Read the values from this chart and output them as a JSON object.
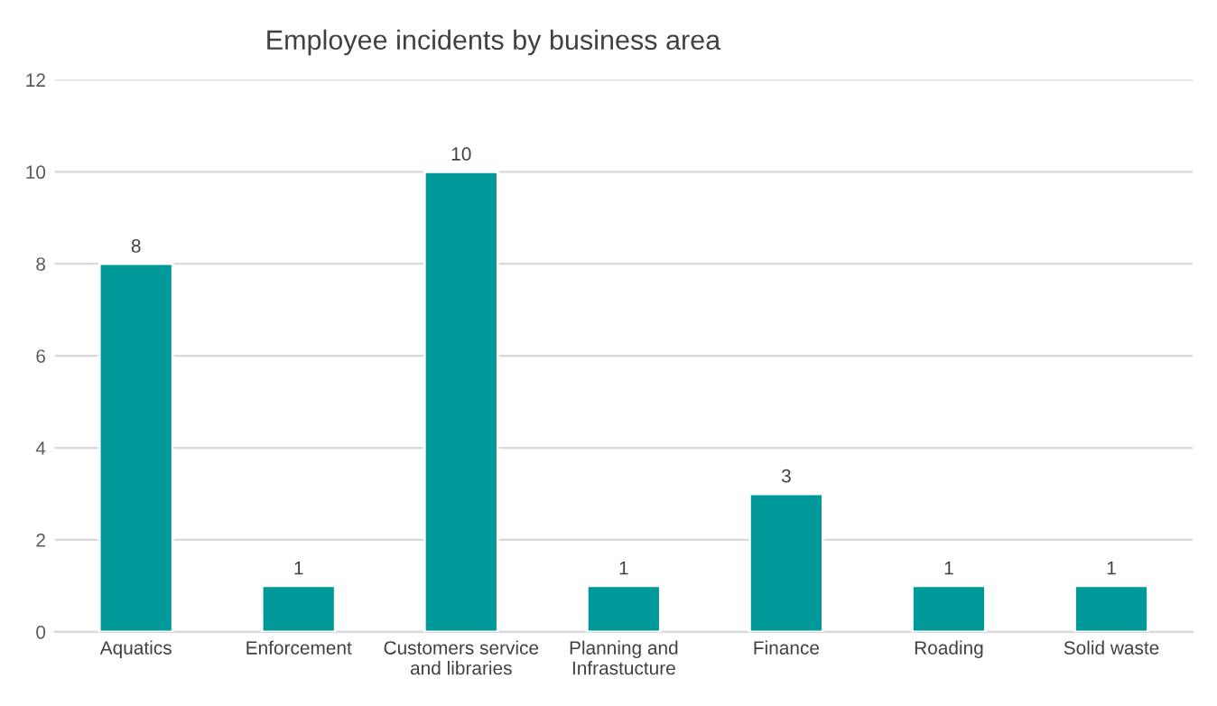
{
  "chart_data": {
    "type": "bar",
    "title": "Employee incidents by business area",
    "categories": [
      "Aquatics",
      "Enforcement",
      "Customers service\nand libraries",
      "Planning and\nInfrastucture",
      "Finance",
      "Roading",
      "Solid waste"
    ],
    "values": [
      8,
      1,
      10,
      1,
      3,
      1,
      1
    ],
    "color": "#009999",
    "ylim": [
      0,
      12
    ],
    "yticks": [
      0,
      2,
      4,
      6,
      8,
      10,
      12
    ],
    "grid": "y",
    "data_labels": true
  }
}
